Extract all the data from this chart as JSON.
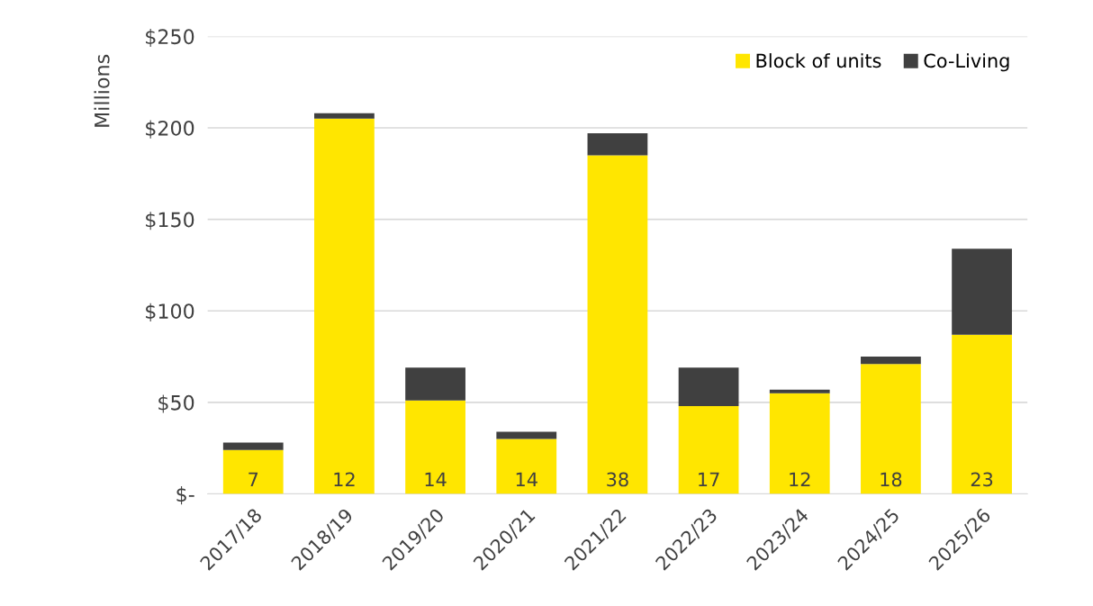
{
  "chart_data": {
    "type": "bar",
    "stacked": true,
    "ylabel": "Millions",
    "categories": [
      "2017/18",
      "2018/19",
      "2019/20",
      "2020/21",
      "2021/22",
      "2022/23",
      "2023/24",
      "2024/25",
      "2025/26"
    ],
    "series": [
      {
        "name": "Block of units",
        "color": "#ffe600",
        "values": [
          24,
          205,
          51,
          30,
          185,
          48,
          55,
          71,
          87
        ]
      },
      {
        "name": "Co-Living",
        "color": "#404040",
        "values": [
          4,
          3,
          18,
          4,
          12,
          21,
          2,
          4,
          47
        ]
      }
    ],
    "ylim": [
      0,
      250
    ],
    "yticks": [
      {
        "value": 0,
        "label": "$-"
      },
      {
        "value": 50,
        "label": "$50"
      },
      {
        "value": 100,
        "label": "$100"
      },
      {
        "value": 150,
        "label": "$150"
      },
      {
        "value": 200,
        "label": "$200"
      },
      {
        "value": 250,
        "label": "$250"
      }
    ],
    "annotations": [
      "7",
      "12",
      "14",
      "14",
      "38",
      "17",
      "12",
      "18",
      "23"
    ],
    "grid": "y",
    "legend": "top right"
  }
}
